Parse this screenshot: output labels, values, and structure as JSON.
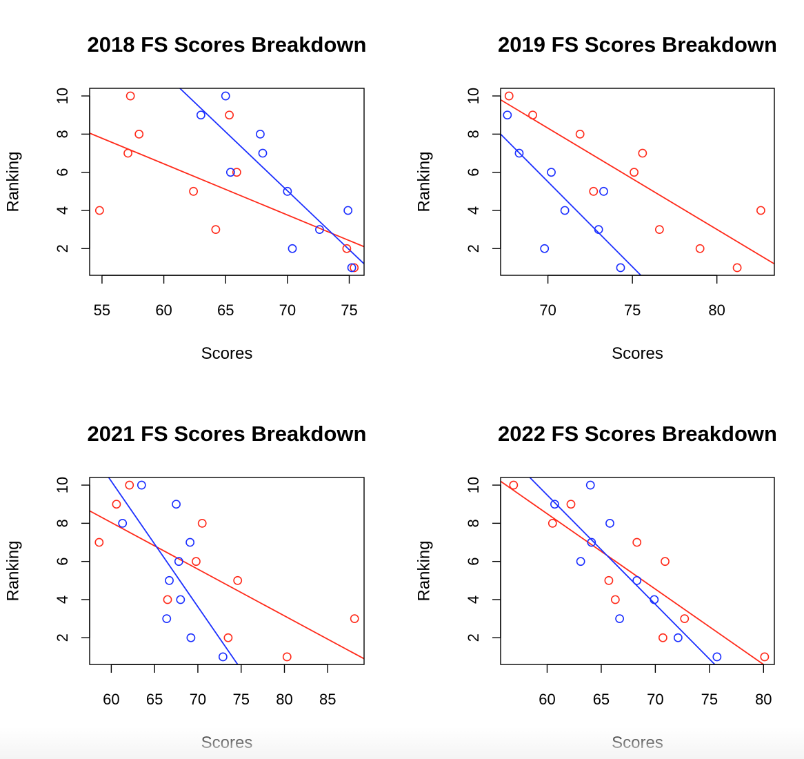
{
  "colors": {
    "red": "#ff2a1a",
    "blue": "#1a2eff"
  },
  "chart_data": [
    {
      "type": "scatter",
      "title": "2018 FS Scores Breakdown",
      "xlabel": "Scores",
      "ylabel": "Ranking",
      "xlim": [
        54,
        76.2
      ],
      "ylim": [
        0.6,
        10.4
      ],
      "xticks": [
        55,
        60,
        65,
        70,
        75
      ],
      "yticks": [
        2,
        4,
        6,
        8,
        10
      ],
      "series": [
        {
          "color": "red",
          "points": [
            [
              57.3,
              10
            ],
            [
              65.3,
              9
            ],
            [
              58.0,
              8
            ],
            [
              57.1,
              7
            ],
            [
              65.9,
              6
            ],
            [
              62.4,
              5
            ],
            [
              54.8,
              4
            ],
            [
              64.2,
              3
            ],
            [
              74.8,
              2
            ],
            [
              75.4,
              1
            ]
          ],
          "fit": [
            [
              54,
              8.05
            ],
            [
              76.2,
              2.1
            ]
          ]
        },
        {
          "color": "blue",
          "points": [
            [
              65.0,
              10
            ],
            [
              63.0,
              9
            ],
            [
              67.8,
              8
            ],
            [
              68.0,
              7
            ],
            [
              65.4,
              6
            ],
            [
              70.0,
              5
            ],
            [
              74.9,
              4
            ],
            [
              72.6,
              3
            ],
            [
              70.4,
              2
            ],
            [
              75.2,
              1
            ]
          ],
          "fit": [
            [
              61.3,
              10.4
            ],
            [
              76.2,
              1.2
            ]
          ]
        }
      ]
    },
    {
      "type": "scatter",
      "title": "2019 FS Scores Breakdown",
      "xlabel": "Scores",
      "ylabel": "Ranking",
      "xlim": [
        67.2,
        83.4
      ],
      "ylim": [
        0.6,
        10.4
      ],
      "xticks": [
        70,
        75,
        80
      ],
      "yticks": [
        2,
        4,
        6,
        8,
        10
      ],
      "series": [
        {
          "color": "red",
          "points": [
            [
              67.7,
              10
            ],
            [
              69.1,
              9
            ],
            [
              71.9,
              8
            ],
            [
              75.6,
              7
            ],
            [
              75.1,
              6
            ],
            [
              72.7,
              5
            ],
            [
              82.6,
              4
            ],
            [
              76.6,
              3
            ],
            [
              79.0,
              2
            ],
            [
              81.2,
              1
            ]
          ],
          "fit": [
            [
              67.2,
              9.8
            ],
            [
              83.4,
              1.2
            ]
          ]
        },
        {
          "color": "blue",
          "points": [
            [
              67.6,
              9
            ],
            [
              68.3,
              7
            ],
            [
              70.2,
              6
            ],
            [
              73.3,
              5
            ],
            [
              71.0,
              4
            ],
            [
              73.0,
              3
            ],
            [
              69.8,
              2
            ],
            [
              74.3,
              1
            ]
          ],
          "fit": [
            [
              67.2,
              8.0
            ],
            [
              75.5,
              0.6
            ]
          ]
        }
      ]
    },
    {
      "type": "scatter",
      "title": "2021 FS Scores Breakdown",
      "xlabel": "Scores",
      "ylabel": "Ranking",
      "xlim": [
        57.5,
        89.2
      ],
      "ylim": [
        0.6,
        10.4
      ],
      "xticks": [
        60,
        65,
        70,
        75,
        80,
        85
      ],
      "yticks": [
        2,
        4,
        6,
        8,
        10
      ],
      "series": [
        {
          "color": "red",
          "points": [
            [
              62.1,
              10
            ],
            [
              60.6,
              9
            ],
            [
              70.5,
              8
            ],
            [
              58.6,
              7
            ],
            [
              69.8,
              6
            ],
            [
              74.6,
              5
            ],
            [
              66.5,
              4
            ],
            [
              88.1,
              3
            ],
            [
              73.5,
              2
            ],
            [
              80.3,
              1
            ]
          ],
          "fit": [
            [
              57.5,
              8.65
            ],
            [
              89.2,
              0.9
            ]
          ]
        },
        {
          "color": "blue",
          "points": [
            [
              63.5,
              10
            ],
            [
              67.5,
              9
            ],
            [
              61.3,
              8
            ],
            [
              69.1,
              7
            ],
            [
              67.8,
              6
            ],
            [
              66.7,
              5
            ],
            [
              68.0,
              4
            ],
            [
              66.4,
              3
            ],
            [
              69.2,
              2
            ],
            [
              72.9,
              1
            ]
          ],
          "fit": [
            [
              59.7,
              10.4
            ],
            [
              74.6,
              0.6
            ]
          ]
        }
      ]
    },
    {
      "type": "scatter",
      "title": "2022 FS Scores Breakdown",
      "xlabel": "Scores",
      "ylabel": "Ranking",
      "xlim": [
        55.7,
        81.0
      ],
      "ylim": [
        0.6,
        10.4
      ],
      "xticks": [
        60,
        65,
        70,
        75,
        80
      ],
      "yticks": [
        2,
        4,
        6,
        8,
        10
      ],
      "series": [
        {
          "color": "red",
          "points": [
            [
              56.9,
              10
            ],
            [
              62.2,
              9
            ],
            [
              60.5,
              8
            ],
            [
              68.3,
              7
            ],
            [
              70.9,
              6
            ],
            [
              65.7,
              5
            ],
            [
              66.3,
              4
            ],
            [
              72.7,
              3
            ],
            [
              70.7,
              2
            ],
            [
              80.1,
              1
            ]
          ],
          "fit": [
            [
              55.7,
              10.2
            ],
            [
              80.0,
              0.6
            ]
          ]
        },
        {
          "color": "blue",
          "points": [
            [
              64.0,
              10
            ],
            [
              60.7,
              9
            ],
            [
              65.8,
              8
            ],
            [
              64.1,
              7
            ],
            [
              63.1,
              6
            ],
            [
              68.3,
              5
            ],
            [
              69.9,
              4
            ],
            [
              66.7,
              3
            ],
            [
              72.1,
              2
            ],
            [
              75.7,
              1
            ]
          ],
          "fit": [
            [
              58.4,
              10.4
            ],
            [
              75.5,
              0.6
            ]
          ]
        }
      ]
    }
  ]
}
